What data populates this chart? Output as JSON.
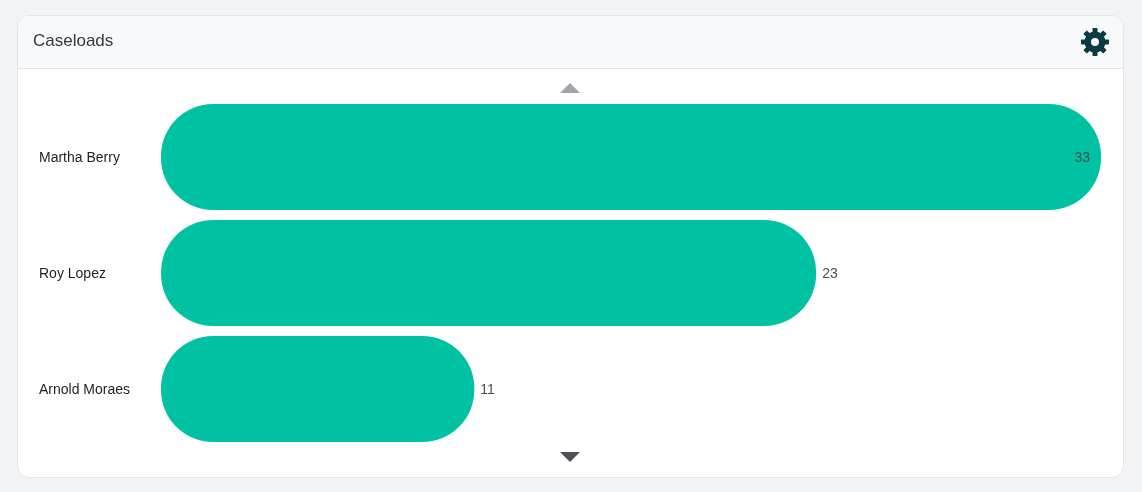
{
  "chart_data": {
    "type": "bar",
    "orientation": "horizontal",
    "title": "Caseloads",
    "categories": [
      "Martha Berry",
      "Roy Lopez",
      "Arnold Moraes"
    ],
    "values": [
      33,
      23,
      11
    ],
    "color": "#00c2a3",
    "data_labels": true
  }
}
